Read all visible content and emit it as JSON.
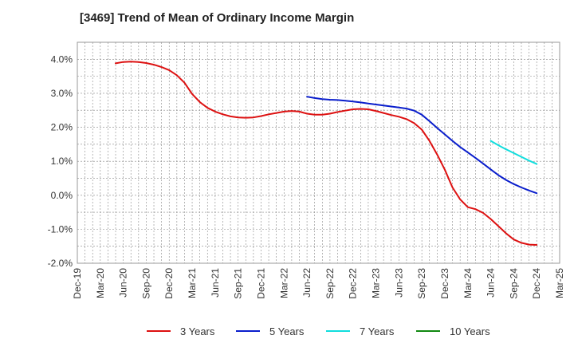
{
  "chart_data": {
    "type": "line",
    "title": "[3469]  Trend of Mean of Ordinary Income Margin",
    "xlabel": "",
    "ylabel": "",
    "ylim": [
      -2.0,
      4.5
    ],
    "y_ticks": [
      -2.0,
      -1.0,
      0.0,
      1.0,
      2.0,
      3.0,
      4.0
    ],
    "y_tick_labels": [
      "-2.0%",
      "-1.0%",
      "0.0%",
      "1.0%",
      "2.0%",
      "3.0%",
      "4.0%"
    ],
    "x_tick_labels": [
      "Dec-19",
      "Mar-20",
      "Jun-20",
      "Sep-20",
      "Dec-20",
      "Mar-21",
      "Jun-21",
      "Sep-21",
      "Dec-21",
      "Mar-22",
      "Jun-22",
      "Sep-22",
      "Dec-22",
      "Mar-23",
      "Jun-23",
      "Sep-23",
      "Dec-23",
      "Mar-24",
      "Jun-24",
      "Sep-24",
      "Dec-24",
      "Mar-25"
    ],
    "x_start": "Dec-19",
    "grid": true,
    "legend_position": "bottom",
    "series": [
      {
        "name": "3 Years",
        "color": "#dd1111",
        "x": [
          "May-20",
          "Jun-20",
          "Jul-20",
          "Aug-20",
          "Sep-20",
          "Oct-20",
          "Nov-20",
          "Dec-20",
          "Jan-21",
          "Feb-21",
          "Mar-21",
          "Apr-21",
          "May-21",
          "Jun-21",
          "Jul-21",
          "Aug-21",
          "Sep-21",
          "Oct-21",
          "Nov-21",
          "Dec-21",
          "Jan-22",
          "Feb-22",
          "Mar-22",
          "Apr-22",
          "May-22",
          "Jun-22",
          "Jul-22",
          "Aug-22",
          "Sep-22",
          "Oct-22",
          "Nov-22",
          "Dec-22",
          "Jan-23",
          "Feb-23",
          "Mar-23",
          "Apr-23",
          "May-23",
          "Jun-23",
          "Jul-23",
          "Aug-23",
          "Sep-23",
          "Oct-23",
          "Nov-23",
          "Dec-23",
          "Jan-24",
          "Feb-24",
          "Mar-24",
          "Apr-24",
          "May-24",
          "Jun-24",
          "Jul-24",
          "Aug-24",
          "Sep-24",
          "Oct-24",
          "Nov-24",
          "Dec-24"
        ],
        "values": [
          3.88,
          3.92,
          3.93,
          3.92,
          3.89,
          3.84,
          3.77,
          3.68,
          3.53,
          3.31,
          2.98,
          2.74,
          2.57,
          2.46,
          2.38,
          2.32,
          2.29,
          2.28,
          2.29,
          2.33,
          2.38,
          2.42,
          2.46,
          2.48,
          2.46,
          2.4,
          2.37,
          2.37,
          2.4,
          2.45,
          2.49,
          2.53,
          2.54,
          2.53,
          2.48,
          2.42,
          2.36,
          2.31,
          2.24,
          2.12,
          1.93,
          1.6,
          1.2,
          0.75,
          0.23,
          -0.12,
          -0.35,
          -0.41,
          -0.52,
          -0.7,
          -0.91,
          -1.12,
          -1.3,
          -1.4,
          -1.45,
          -1.46
        ]
      },
      {
        "name": "5 Years",
        "color": "#0a1ecc",
        "x": [
          "Jun-22",
          "Jul-22",
          "Aug-22",
          "Sep-22",
          "Oct-22",
          "Nov-22",
          "Dec-22",
          "Jan-23",
          "Feb-23",
          "Mar-23",
          "Apr-23",
          "May-23",
          "Jun-23",
          "Jul-23",
          "Aug-23",
          "Sep-23",
          "Oct-23",
          "Nov-23",
          "Dec-23",
          "Jan-24",
          "Feb-24",
          "Mar-24",
          "Apr-24",
          "May-24",
          "Jun-24",
          "Jul-24",
          "Aug-24",
          "Sep-24",
          "Oct-24",
          "Nov-24",
          "Dec-24"
        ],
        "values": [
          2.9,
          2.86,
          2.83,
          2.81,
          2.8,
          2.78,
          2.76,
          2.73,
          2.7,
          2.67,
          2.64,
          2.61,
          2.58,
          2.55,
          2.49,
          2.37,
          2.18,
          1.98,
          1.79,
          1.6,
          1.42,
          1.26,
          1.1,
          0.93,
          0.76,
          0.59,
          0.45,
          0.33,
          0.23,
          0.14,
          0.06
        ]
      },
      {
        "name": "7 Years",
        "color": "#11dddd",
        "x": [
          "Jun-24",
          "Jul-24",
          "Aug-24",
          "Sep-24",
          "Oct-24",
          "Nov-24",
          "Dec-24"
        ],
        "values": [
          1.6,
          1.47,
          1.35,
          1.24,
          1.13,
          1.02,
          0.92
        ]
      },
      {
        "name": "10 Years",
        "color": "#118811",
        "x": [],
        "values": []
      }
    ]
  }
}
